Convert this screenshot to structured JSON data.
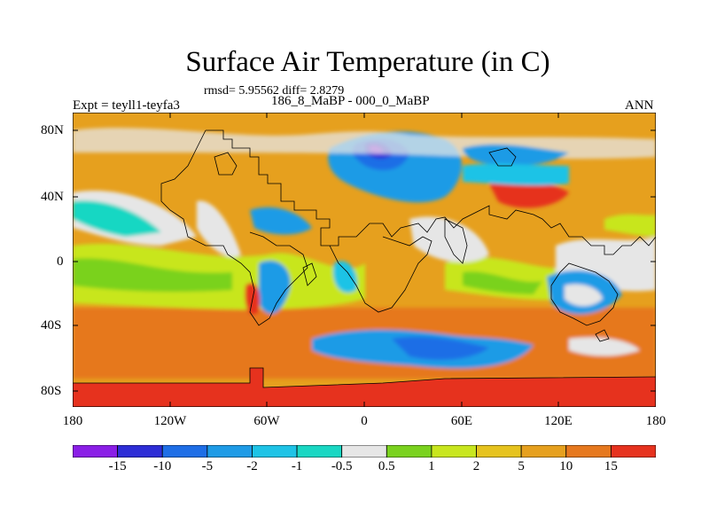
{
  "title": "Surface Air Temperature (in C)",
  "stats_line": "rmsd= 5.95562 diff= 2.8279",
  "experiment_label": "Expt = teyll1-teyfa3",
  "period_label": "186_8_MaBP - 000_0_MaBP",
  "season_label": "ANN",
  "lat_ticks": [
    "80N",
    "40N",
    "0",
    "40S",
    "80S"
  ],
  "lon_ticks": [
    "180",
    "120W",
    "60W",
    "0",
    "60E",
    "120E",
    "180"
  ],
  "colorbar": {
    "colors": [
      "#8a1ee6",
      "#2d2dd6",
      "#1e6ee6",
      "#1e9be6",
      "#1ec3e6",
      "#19d7c3",
      "#e6e6e6",
      "#7ad21e",
      "#c8e61e",
      "#e6c31e",
      "#e6a01e",
      "#e6781e",
      "#e6321e"
    ],
    "labels": [
      "-15",
      "-10",
      "-5",
      "-2",
      "-1",
      "-0.5",
      "0.5",
      "1",
      "2",
      "5",
      "10",
      "15"
    ]
  },
  "legend_icons": [
    "map-panel-icon"
  ]
}
